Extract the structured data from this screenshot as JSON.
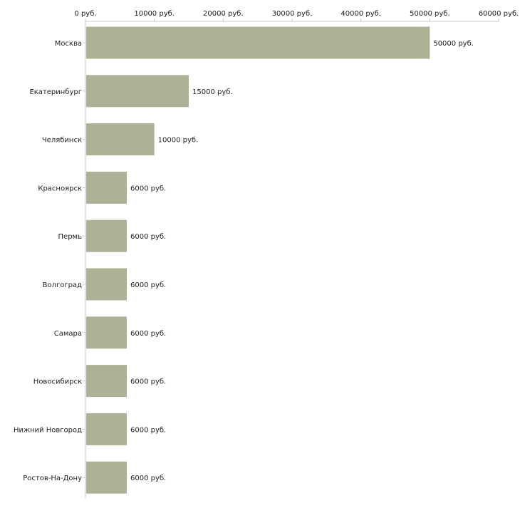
{
  "chart_data": {
    "type": "bar",
    "orientation": "horizontal",
    "title": "",
    "xlabel": "",
    "ylabel": "",
    "categories": [
      "Москва",
      "Екатеринбург",
      "Челябинск",
      "Красноярск",
      "Пермь",
      "Волгоград",
      "Самара",
      "Новосибирск",
      "Нижний Новгород",
      "Ростов-На-Дону"
    ],
    "values": [
      50000,
      15000,
      10000,
      6000,
      6000,
      6000,
      6000,
      6000,
      6000,
      6000
    ],
    "value_labels": [
      "50000 руб.",
      "15000 руб.",
      "10000 руб.",
      "6000 руб.",
      "6000 руб.",
      "6000 руб.",
      "6000 руб.",
      "6000 руб.",
      "6000 руб.",
      "6000 руб."
    ],
    "xlim": [
      0,
      60000
    ],
    "x_ticks": [
      0,
      10000,
      20000,
      30000,
      40000,
      50000,
      60000
    ],
    "x_tick_labels": [
      "0 руб.",
      "10000 руб.",
      "20000 руб.",
      "30000 руб.",
      "40000 руб.",
      "50000 руб.",
      "60000 руб."
    ],
    "x_axis_position": "top",
    "grid": false,
    "legend": false,
    "bar_color": "#adb296"
  }
}
